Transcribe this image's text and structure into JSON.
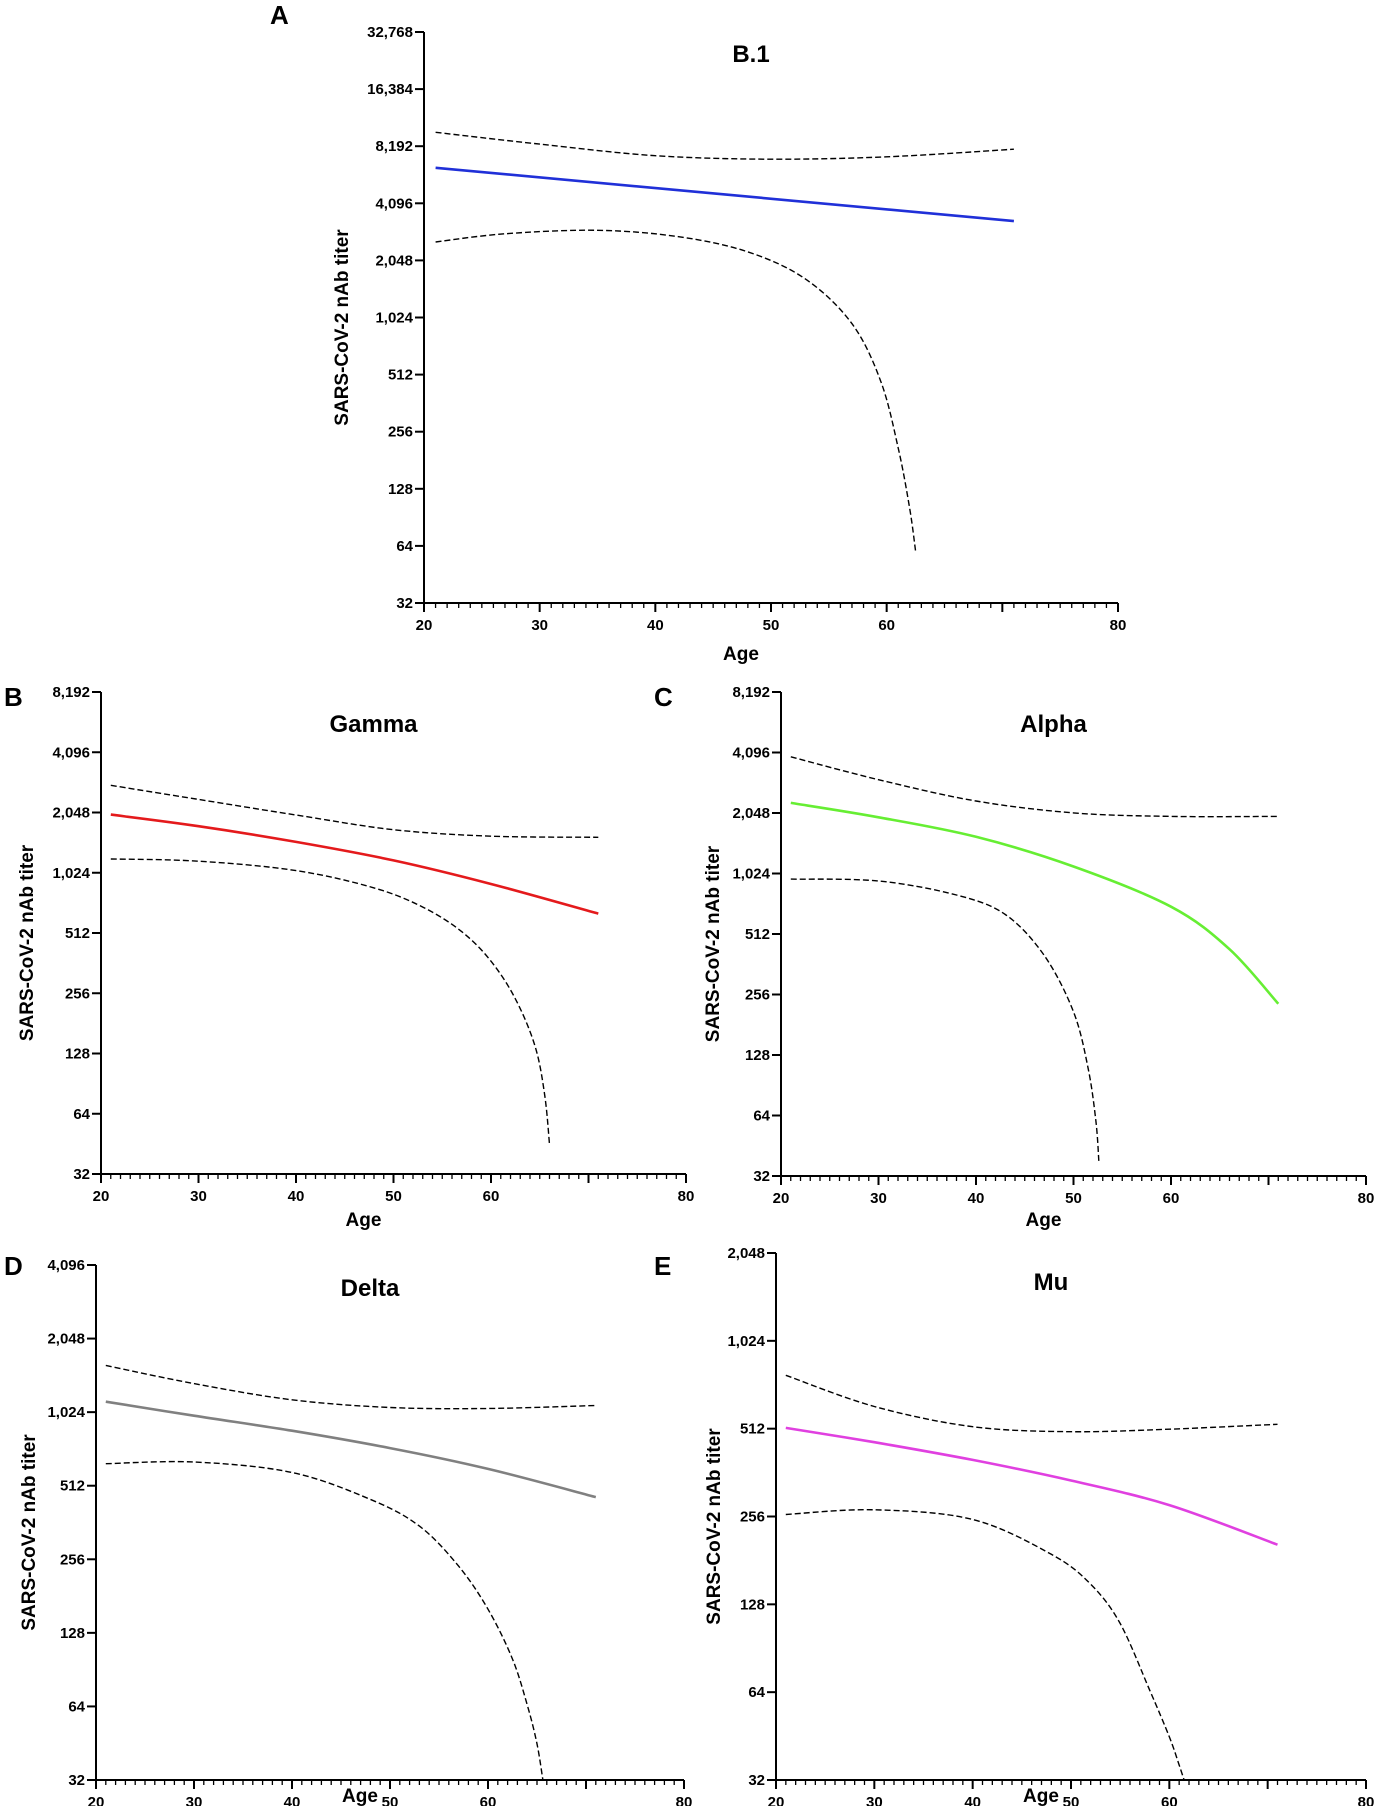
{
  "chart_data": [
    {
      "panel": "A",
      "type": "line",
      "title": "B.1",
      "xlabel": "Age",
      "ylabel": "SARS-CoV-2 nAb titer",
      "yscale": "log2",
      "xlim": [
        20,
        80
      ],
      "ylim": [
        32,
        32768
      ],
      "xticks": [
        "20",
        "30",
        "40",
        "50",
        "60",
        "80"
      ],
      "yticks": [
        "32",
        "64",
        "128",
        "256",
        "512",
        "1,024",
        "2,048",
        "4,096",
        "8,192",
        "16,384",
        "32,768"
      ],
      "color": "#2030d8",
      "series": [
        {
          "name": "fit",
          "x": [
            21,
            71
          ],
          "values": [
            6300,
            3300
          ]
        },
        {
          "name": "upper 95% CI",
          "x": [
            21,
            30,
            40,
            50,
            60,
            71
          ],
          "values": [
            9700,
            8400,
            7300,
            7000,
            7200,
            7900
          ]
        },
        {
          "name": "lower 95% CI",
          "x": [
            21,
            27,
            35,
            42,
            48,
            53,
            57,
            59.5,
            61,
            62,
            62.5
          ],
          "values": [
            2560,
            2830,
            2950,
            2730,
            2270,
            1630,
            950,
            470,
            210,
            100,
            60
          ]
        }
      ]
    },
    {
      "panel": "B",
      "type": "line",
      "title": "Gamma",
      "xlabel": "Age",
      "ylabel": "SARS-CoV-2 nAb titer",
      "yscale": "log2",
      "xlim": [
        20,
        80
      ],
      "ylim": [
        32,
        8192
      ],
      "xticks": [
        "20",
        "30",
        "40",
        "50",
        "60",
        "80"
      ],
      "yticks": [
        "32",
        "64",
        "128",
        "256",
        "512",
        "1,024",
        "2,048",
        "4,096",
        "8,192"
      ],
      "color": "#e41a1c",
      "series": [
        {
          "name": "fit",
          "x": [
            21,
            30,
            40,
            50,
            60,
            71
          ],
          "values": [
            2000,
            1750,
            1460,
            1180,
            900,
            640
          ]
        },
        {
          "name": "upper 95% CI",
          "x": [
            21,
            30,
            40,
            50,
            60,
            71
          ],
          "values": [
            2800,
            2380,
            1990,
            1680,
            1560,
            1540
          ]
        },
        {
          "name": "lower 95% CI",
          "x": [
            21,
            30,
            40,
            48,
            53,
            57,
            60,
            62.5,
            64.5,
            65.5,
            66
          ],
          "values": [
            1200,
            1170,
            1050,
            860,
            690,
            520,
            370,
            240,
            140,
            80,
            45
          ]
        }
      ]
    },
    {
      "panel": "C",
      "type": "line",
      "title": "Alpha",
      "xlabel": "Age",
      "ylabel": "SARS-CoV-2 nAb titer",
      "yscale": "log2",
      "xlim": [
        20,
        80
      ],
      "ylim": [
        32,
        8192
      ],
      "xticks": [
        "20",
        "30",
        "40",
        "50",
        "60",
        "80"
      ],
      "yticks": [
        "32",
        "64",
        "128",
        "256",
        "512",
        "1,024",
        "2,048",
        "4,096",
        "8,192"
      ],
      "color": "#66ee33",
      "series": [
        {
          "name": "fit",
          "x": [
            21,
            30,
            40,
            50,
            60,
            66,
            71
          ],
          "values": [
            2300,
            1950,
            1560,
            1110,
            700,
            430,
            230
          ]
        },
        {
          "name": "upper 95% CI",
          "x": [
            21,
            30,
            40,
            50,
            60,
            71
          ],
          "values": [
            3900,
            3000,
            2350,
            2050,
            1970,
            1970
          ]
        },
        {
          "name": "lower 95% CI",
          "x": [
            21,
            30,
            38,
            43,
            47,
            50,
            51.5,
            52.3,
            52.6
          ],
          "values": [
            960,
            940,
            800,
            640,
            400,
            210,
            110,
            60,
            38
          ]
        }
      ]
    },
    {
      "panel": "D",
      "type": "line",
      "title": "Delta",
      "xlabel": "Age",
      "ylabel": "SARS-CoV-2 nAb titer",
      "yscale": "log2",
      "xlim": [
        20,
        80
      ],
      "ylim": [
        32,
        4096
      ],
      "xticks": [
        "20",
        "30",
        "40",
        "50",
        "60",
        "80"
      ],
      "yticks": [
        "32",
        "64",
        "128",
        "256",
        "512",
        "1,024",
        "2,048",
        "4,096"
      ],
      "color": "#808080",
      "series": [
        {
          "name": "fit",
          "x": [
            21,
            30,
            40,
            50,
            60,
            71
          ],
          "values": [
            1130,
            990,
            860,
            730,
            600,
            460
          ]
        },
        {
          "name": "upper 95% CI",
          "x": [
            21,
            30,
            40,
            50,
            60,
            71
          ],
          "values": [
            1590,
            1340,
            1150,
            1070,
            1060,
            1090
          ]
        },
        {
          "name": "lower 95% CI",
          "x": [
            21,
            30,
            40,
            48,
            53,
            57,
            60,
            62.5,
            64,
            65,
            65.6
          ],
          "values": [
            630,
            640,
            580,
            450,
            350,
            240,
            160,
            100,
            65,
            45,
            32
          ]
        }
      ]
    },
    {
      "panel": "E",
      "type": "line",
      "title": "Mu",
      "xlabel": "Age",
      "ylabel": "SARS-CoV-2 nAb titer",
      "yscale": "log2",
      "xlim": [
        20,
        80
      ],
      "ylim": [
        32,
        2048
      ],
      "xticks": [
        "20",
        "30",
        "40",
        "50",
        "60",
        "80"
      ],
      "yticks": [
        "32",
        "64",
        "128",
        "256",
        "512",
        "1,024",
        "2,048"
      ],
      "color": "#e040e0",
      "series": [
        {
          "name": "fit",
          "x": [
            21,
            30,
            40,
            50,
            60,
            71
          ],
          "values": [
            515,
            460,
            400,
            340,
            280,
            205
          ]
        },
        {
          "name": "upper 95% CI",
          "x": [
            21,
            30,
            40,
            50,
            60,
            71
          ],
          "values": [
            780,
            610,
            520,
            500,
            510,
            530
          ]
        },
        {
          "name": "lower 95% CI",
          "x": [
            21,
            30,
            40,
            48,
            52,
            55,
            58,
            60,
            61,
            61.5
          ],
          "values": [
            260,
            270,
            250,
            190,
            150,
            110,
            65,
            45,
            36,
            32
          ]
        }
      ]
    }
  ]
}
